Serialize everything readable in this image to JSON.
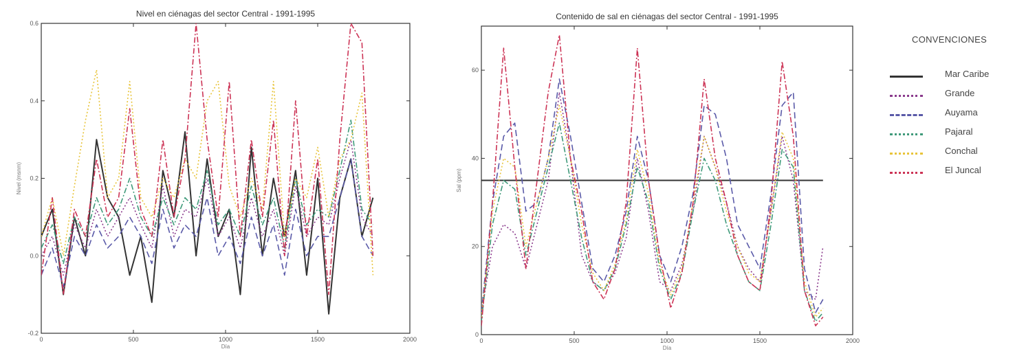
{
  "chart_data": [
    {
      "type": "line",
      "title": "Nivel en ciénagas del sector Central - 1991-1995",
      "xlabel": "Día",
      "ylabel": "Nivel (msnm)",
      "xlim": [
        0,
        2000
      ],
      "ylim": [
        -0.2,
        0.6
      ],
      "xticks": [
        0,
        500,
        1000,
        1500,
        2000
      ],
      "yticks": [
        -0.2,
        0.0,
        0.2,
        0.4,
        0.6
      ],
      "ytick_labels": [
        "-0.2",
        "0.0",
        "0.2",
        "0.4",
        "0.6"
      ],
      "grid": false,
      "x": [
        0,
        60,
        120,
        180,
        240,
        300,
        360,
        420,
        480,
        540,
        600,
        660,
        720,
        780,
        840,
        900,
        960,
        1020,
        1080,
        1140,
        1200,
        1260,
        1320,
        1380,
        1440,
        1500,
        1560,
        1620,
        1680,
        1740,
        1800
      ],
      "series": [
        {
          "name": "Mar Caribe",
          "values": [
            0.05,
            0.12,
            -0.1,
            0.1,
            0.0,
            0.3,
            0.15,
            0.1,
            -0.05,
            0.05,
            -0.12,
            0.22,
            0.1,
            0.32,
            0.0,
            0.25,
            0.05,
            0.12,
            -0.1,
            0.28,
            0.0,
            0.2,
            0.05,
            0.22,
            -0.05,
            0.2,
            -0.15,
            0.15,
            0.25,
            0.05,
            0.15
          ]
        },
        {
          "name": "Grande",
          "values": [
            0.0,
            0.05,
            -0.05,
            0.08,
            0.02,
            0.12,
            0.05,
            0.1,
            0.15,
            0.08,
            0.02,
            0.18,
            0.05,
            0.12,
            0.1,
            0.2,
            0.05,
            0.1,
            0.02,
            0.15,
            0.05,
            0.12,
            0.0,
            0.18,
            0.05,
            0.1,
            0.08,
            0.2,
            0.3,
            0.1,
            0.05
          ]
        },
        {
          "name": "Auyama",
          "values": [
            -0.05,
            0.02,
            -0.08,
            0.05,
            0.0,
            0.08,
            0.02,
            0.05,
            0.1,
            0.05,
            -0.02,
            0.12,
            0.02,
            0.08,
            0.05,
            0.15,
            0.0,
            0.05,
            -0.02,
            0.1,
            0.0,
            0.08,
            -0.05,
            0.12,
            0.0,
            0.05,
            0.05,
            0.15,
            0.25,
            0.05,
            0.0
          ]
        },
        {
          "name": "Pajaral",
          "values": [
            0.02,
            0.08,
            -0.02,
            0.1,
            0.05,
            0.15,
            0.08,
            0.12,
            0.2,
            0.1,
            0.05,
            0.15,
            0.08,
            0.15,
            0.12,
            0.22,
            0.08,
            0.12,
            0.05,
            0.18,
            0.08,
            0.15,
            0.02,
            0.2,
            0.08,
            0.12,
            0.1,
            0.22,
            0.35,
            0.12,
            0.08
          ]
        },
        {
          "name": "Conchal",
          "values": [
            0.05,
            0.15,
            0.0,
            0.18,
            0.35,
            0.48,
            0.15,
            0.2,
            0.45,
            0.15,
            0.1,
            0.2,
            0.15,
            0.25,
            0.2,
            0.4,
            0.45,
            0.18,
            0.1,
            0.2,
            0.12,
            0.45,
            0.05,
            0.2,
            0.15,
            0.28,
            0.1,
            0.25,
            0.3,
            0.42,
            -0.05
          ]
        },
        {
          "name": "El Juncal",
          "values": [
            -0.05,
            0.15,
            -0.1,
            0.12,
            0.05,
            0.25,
            0.1,
            0.15,
            0.38,
            0.12,
            0.05,
            0.3,
            0.1,
            0.25,
            0.6,
            0.3,
            0.1,
            0.45,
            0.05,
            0.3,
            0.1,
            0.35,
            0.0,
            0.4,
            0.05,
            0.25,
            -0.1,
            0.3,
            0.6,
            0.55,
            0.0
          ]
        }
      ]
    },
    {
      "type": "line",
      "title": "Contenido de sal en ciénagas del sector Central - 1991-1995",
      "xlabel": "Día",
      "ylabel": "Sal (ppm)",
      "xlim": [
        0,
        2000
      ],
      "ylim": [
        0,
        70
      ],
      "xticks": [
        0,
        500,
        1000,
        1500,
        2000
      ],
      "yticks": [
        0,
        20,
        40,
        60
      ],
      "grid": false,
      "x": [
        0,
        60,
        120,
        180,
        240,
        300,
        360,
        420,
        480,
        540,
        600,
        660,
        720,
        780,
        840,
        900,
        960,
        1020,
        1080,
        1140,
        1200,
        1260,
        1320,
        1380,
        1440,
        1500,
        1560,
        1620,
        1680,
        1740,
        1800,
        1840
      ],
      "series": [
        {
          "name": "Mar Caribe",
          "values": [
            35,
            35,
            35,
            35,
            35,
            35,
            35,
            35,
            35,
            35,
            35,
            35,
            35,
            35,
            35,
            35,
            35,
            35,
            35,
            35,
            35,
            35,
            35,
            35,
            35,
            35,
            35,
            35,
            35,
            35,
            35,
            35
          ]
        },
        {
          "name": "Grande",
          "values": [
            5,
            20,
            25,
            23,
            15,
            25,
            35,
            55,
            40,
            18,
            12,
            10,
            14,
            22,
            40,
            28,
            12,
            10,
            16,
            28,
            45,
            38,
            30,
            20,
            15,
            12,
            28,
            45,
            35,
            10,
            8,
            20
          ]
        },
        {
          "name": "Auyama",
          "values": [
            5,
            30,
            45,
            48,
            28,
            30,
            40,
            58,
            45,
            30,
            15,
            12,
            18,
            28,
            45,
            35,
            18,
            12,
            20,
            32,
            52,
            50,
            40,
            25,
            20,
            15,
            32,
            52,
            55,
            15,
            5,
            8
          ]
        },
        {
          "name": "Pajaral",
          "values": [
            3,
            25,
            35,
            33,
            18,
            28,
            38,
            48,
            35,
            22,
            12,
            10,
            15,
            25,
            38,
            30,
            15,
            8,
            14,
            28,
            40,
            35,
            25,
            18,
            12,
            10,
            25,
            42,
            38,
            10,
            3,
            5
          ]
        },
        {
          "name": "Conchal",
          "values": [
            4,
            28,
            40,
            38,
            20,
            30,
            40,
            52,
            40,
            25,
            14,
            10,
            16,
            26,
            42,
            32,
            16,
            9,
            15,
            30,
            45,
            38,
            28,
            20,
            14,
            12,
            28,
            46,
            40,
            12,
            4,
            6
          ]
        },
        {
          "name": "El Juncal",
          "values": [
            2,
            30,
            65,
            38,
            15,
            35,
            55,
            68,
            40,
            28,
            12,
            8,
            15,
            30,
            65,
            35,
            18,
            6,
            14,
            30,
            58,
            40,
            30,
            18,
            12,
            10,
            30,
            62,
            45,
            10,
            2,
            4
          ]
        }
      ]
    }
  ],
  "legend": {
    "title": "CONVENCIONES",
    "items": [
      {
        "label": "Mar Caribe",
        "color": "#333333",
        "dash": "solid"
      },
      {
        "label": "Grande",
        "color": "#8a3a8c",
        "dash": "dotted"
      },
      {
        "label": "Auyama",
        "color": "#5a5aa8",
        "dash": "dashed"
      },
      {
        "label": "Pajaral",
        "color": "#3f9a7a",
        "dash": "dashdot"
      },
      {
        "label": "Conchal",
        "color": "#e8c43a",
        "dash": "dotted"
      },
      {
        "label": "El Juncal",
        "color": "#cc3355",
        "dash": "dashdot"
      }
    ]
  }
}
